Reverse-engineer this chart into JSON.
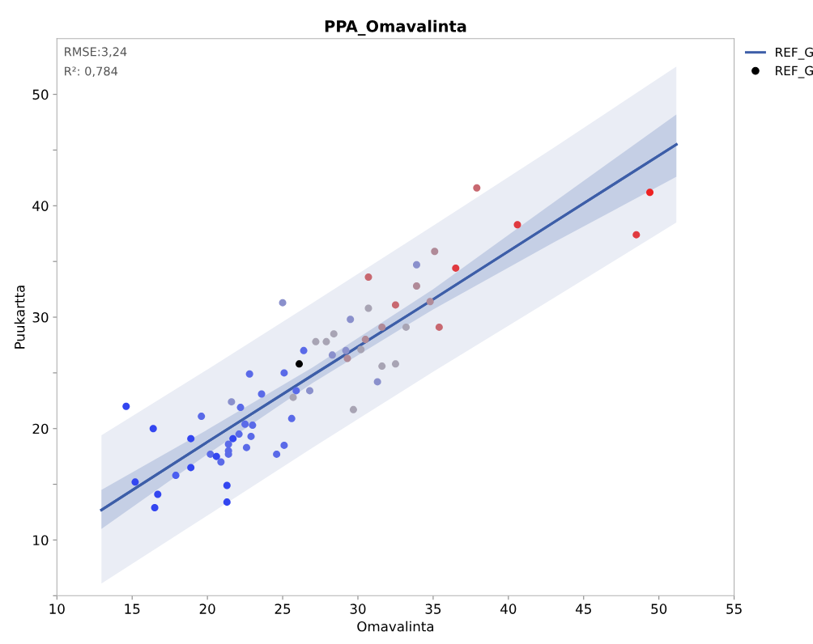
{
  "chart_data": {
    "type": "scatter",
    "title": "PPA_Omavalinta",
    "xlabel": "Omavalinta",
    "ylabel": "Puukartta",
    "annotations": [
      "RMSE:3,24",
      "R²: 0,784"
    ],
    "xlim": [
      10,
      55
    ],
    "xticks": [
      10,
      15,
      20,
      25,
      30,
      35,
      40,
      45,
      50,
      55
    ],
    "ylim": [
      5,
      55
    ],
    "yticks": [
      {
        "value": 5,
        "label": null
      },
      10,
      {
        "value": 15,
        "label": null
      },
      20,
      {
        "value": 25,
        "label": null
      },
      30,
      {
        "value": 35,
        "label": null
      },
      40,
      {
        "value": 45,
        "label": null
      },
      50
    ],
    "grid": false,
    "legend": "top right",
    "marker": "circle",
    "series": [
      {
        "type": "line",
        "color": "#3d5ea8",
        "marker": "none",
        "line_style": "solid",
        "x": [
          12.96,
          20,
          27,
          35,
          43,
          51.16
        ],
        "values": [
          12.7,
          18.8,
          24.8,
          31.6,
          38.5,
          45.5
        ],
        "lower": [
          6.1,
          12.2,
          18.3,
          25.1,
          31.7,
          38.5
        ],
        "upper": [
          19.4,
          25.3,
          31.3,
          38.2,
          45.2,
          52.5
        ]
      },
      {
        "type": "line",
        "name": "REF_G",
        "color": "#3d5ea8",
        "line_style": "solid",
        "marker": "none",
        "x": [
          12.96,
          20,
          27,
          35,
          43,
          51.16
        ],
        "values": [
          12.7,
          18.8,
          24.8,
          31.6,
          38.5,
          45.5
        ],
        "lower": [
          11.0,
          17.7,
          24.1,
          30.7,
          36.7,
          42.6
        ],
        "upper": [
          14.5,
          19.9,
          25.5,
          32.5,
          40.3,
          48.2
        ]
      },
      {
        "type": "scatter",
        "name": "REF_G",
        "color": "#000000",
        "x": [
          14.6,
          16.4,
          15.2,
          16.7,
          16.5,
          17.9,
          18.9,
          18.9,
          19.6,
          20.2,
          20.6,
          20.9,
          21.3,
          21.3,
          21.4,
          21.4,
          21.4,
          21.7,
          22.1,
          22.2,
          22.5,
          23.0,
          22.9,
          22.6,
          21.6,
          23.6,
          22.8,
          24.6,
          25.1,
          25.6,
          25.1,
          25.9,
          25.7,
          26.8,
          26.1,
          26.4,
          27.2,
          27.9,
          28.4,
          28.3,
          25.0,
          29.5,
          29.2,
          29.3,
          30.2,
          30.5,
          30.7,
          30.7,
          31.6,
          31.6,
          32.5,
          32.5,
          31.3,
          29.7,
          33.2,
          33.9,
          33.9,
          34.8,
          35.1,
          35.4,
          36.5,
          37.9,
          40.6,
          49.4,
          48.5
        ],
        "values": [
          22.0,
          20.0,
          15.2,
          14.1,
          12.9,
          15.8,
          16.5,
          19.1,
          21.1,
          17.7,
          17.5,
          17.0,
          14.9,
          13.4,
          18.6,
          18.0,
          17.7,
          19.1,
          19.5,
          21.9,
          20.4,
          20.3,
          19.3,
          18.3,
          22.4,
          23.1,
          24.9,
          17.7,
          18.5,
          20.9,
          25.0,
          23.4,
          22.8,
          23.4,
          25.8,
          27.0,
          27.8,
          27.8,
          28.5,
          26.6,
          31.3,
          29.8,
          27.0,
          26.3,
          27.1,
          28.0,
          33.6,
          30.8,
          29.1,
          25.6,
          31.1,
          25.8,
          24.2,
          21.7,
          29.1,
          34.7,
          32.8,
          31.4,
          35.9,
          29.1,
          34.4,
          41.6,
          38.3,
          41.2,
          37.4
        ],
        "colors": [
          "#3346f0",
          "#3346f0",
          "#3346f0",
          "#3346f0",
          "#3346f0",
          "#4a5ef0",
          "#3346f0",
          "#3346f0",
          "#5a6ae8",
          "#5a6ae8",
          "#3346f0",
          "#5a6ae8",
          "#3346f0",
          "#3346f0",
          "#5a6ae8",
          "#5a6ae8",
          "#5a6ae8",
          "#3346f0",
          "#5a6ae8",
          "#5a6ae8",
          "#5a6ae8",
          "#5a6ae8",
          "#5a6ae8",
          "#5a6ae8",
          "#8a90cc",
          "#5a6ae8",
          "#5a6ae8",
          "#5a6ae8",
          "#5a6ae8",
          "#5a6ae8",
          "#5a6ae8",
          "#5a6ae8",
          "#a8a4b4",
          "#8a90cc",
          "#000000",
          "#5a6ae8",
          "#a8a4b4",
          "#a8a4b4",
          "#a8a4b4",
          "#8a90cc",
          "#8a90cc",
          "#8a90cc",
          "#8a90cc",
          "#b08a98",
          "#a8a4b4",
          "#b08a98",
          "#c86870",
          "#a8a4b4",
          "#b08a98",
          "#a8a4b4",
          "#c86870",
          "#a8a4b4",
          "#8a90cc",
          "#a8a4b4",
          "#a8a4b4",
          "#8a90cc",
          "#b08a98",
          "#b08a98",
          "#b08a98",
          "#c86870",
          "#e03a40",
          "#c86870",
          "#e03a40",
          "#ee2222",
          "#e03a40"
        ]
      }
    ]
  }
}
